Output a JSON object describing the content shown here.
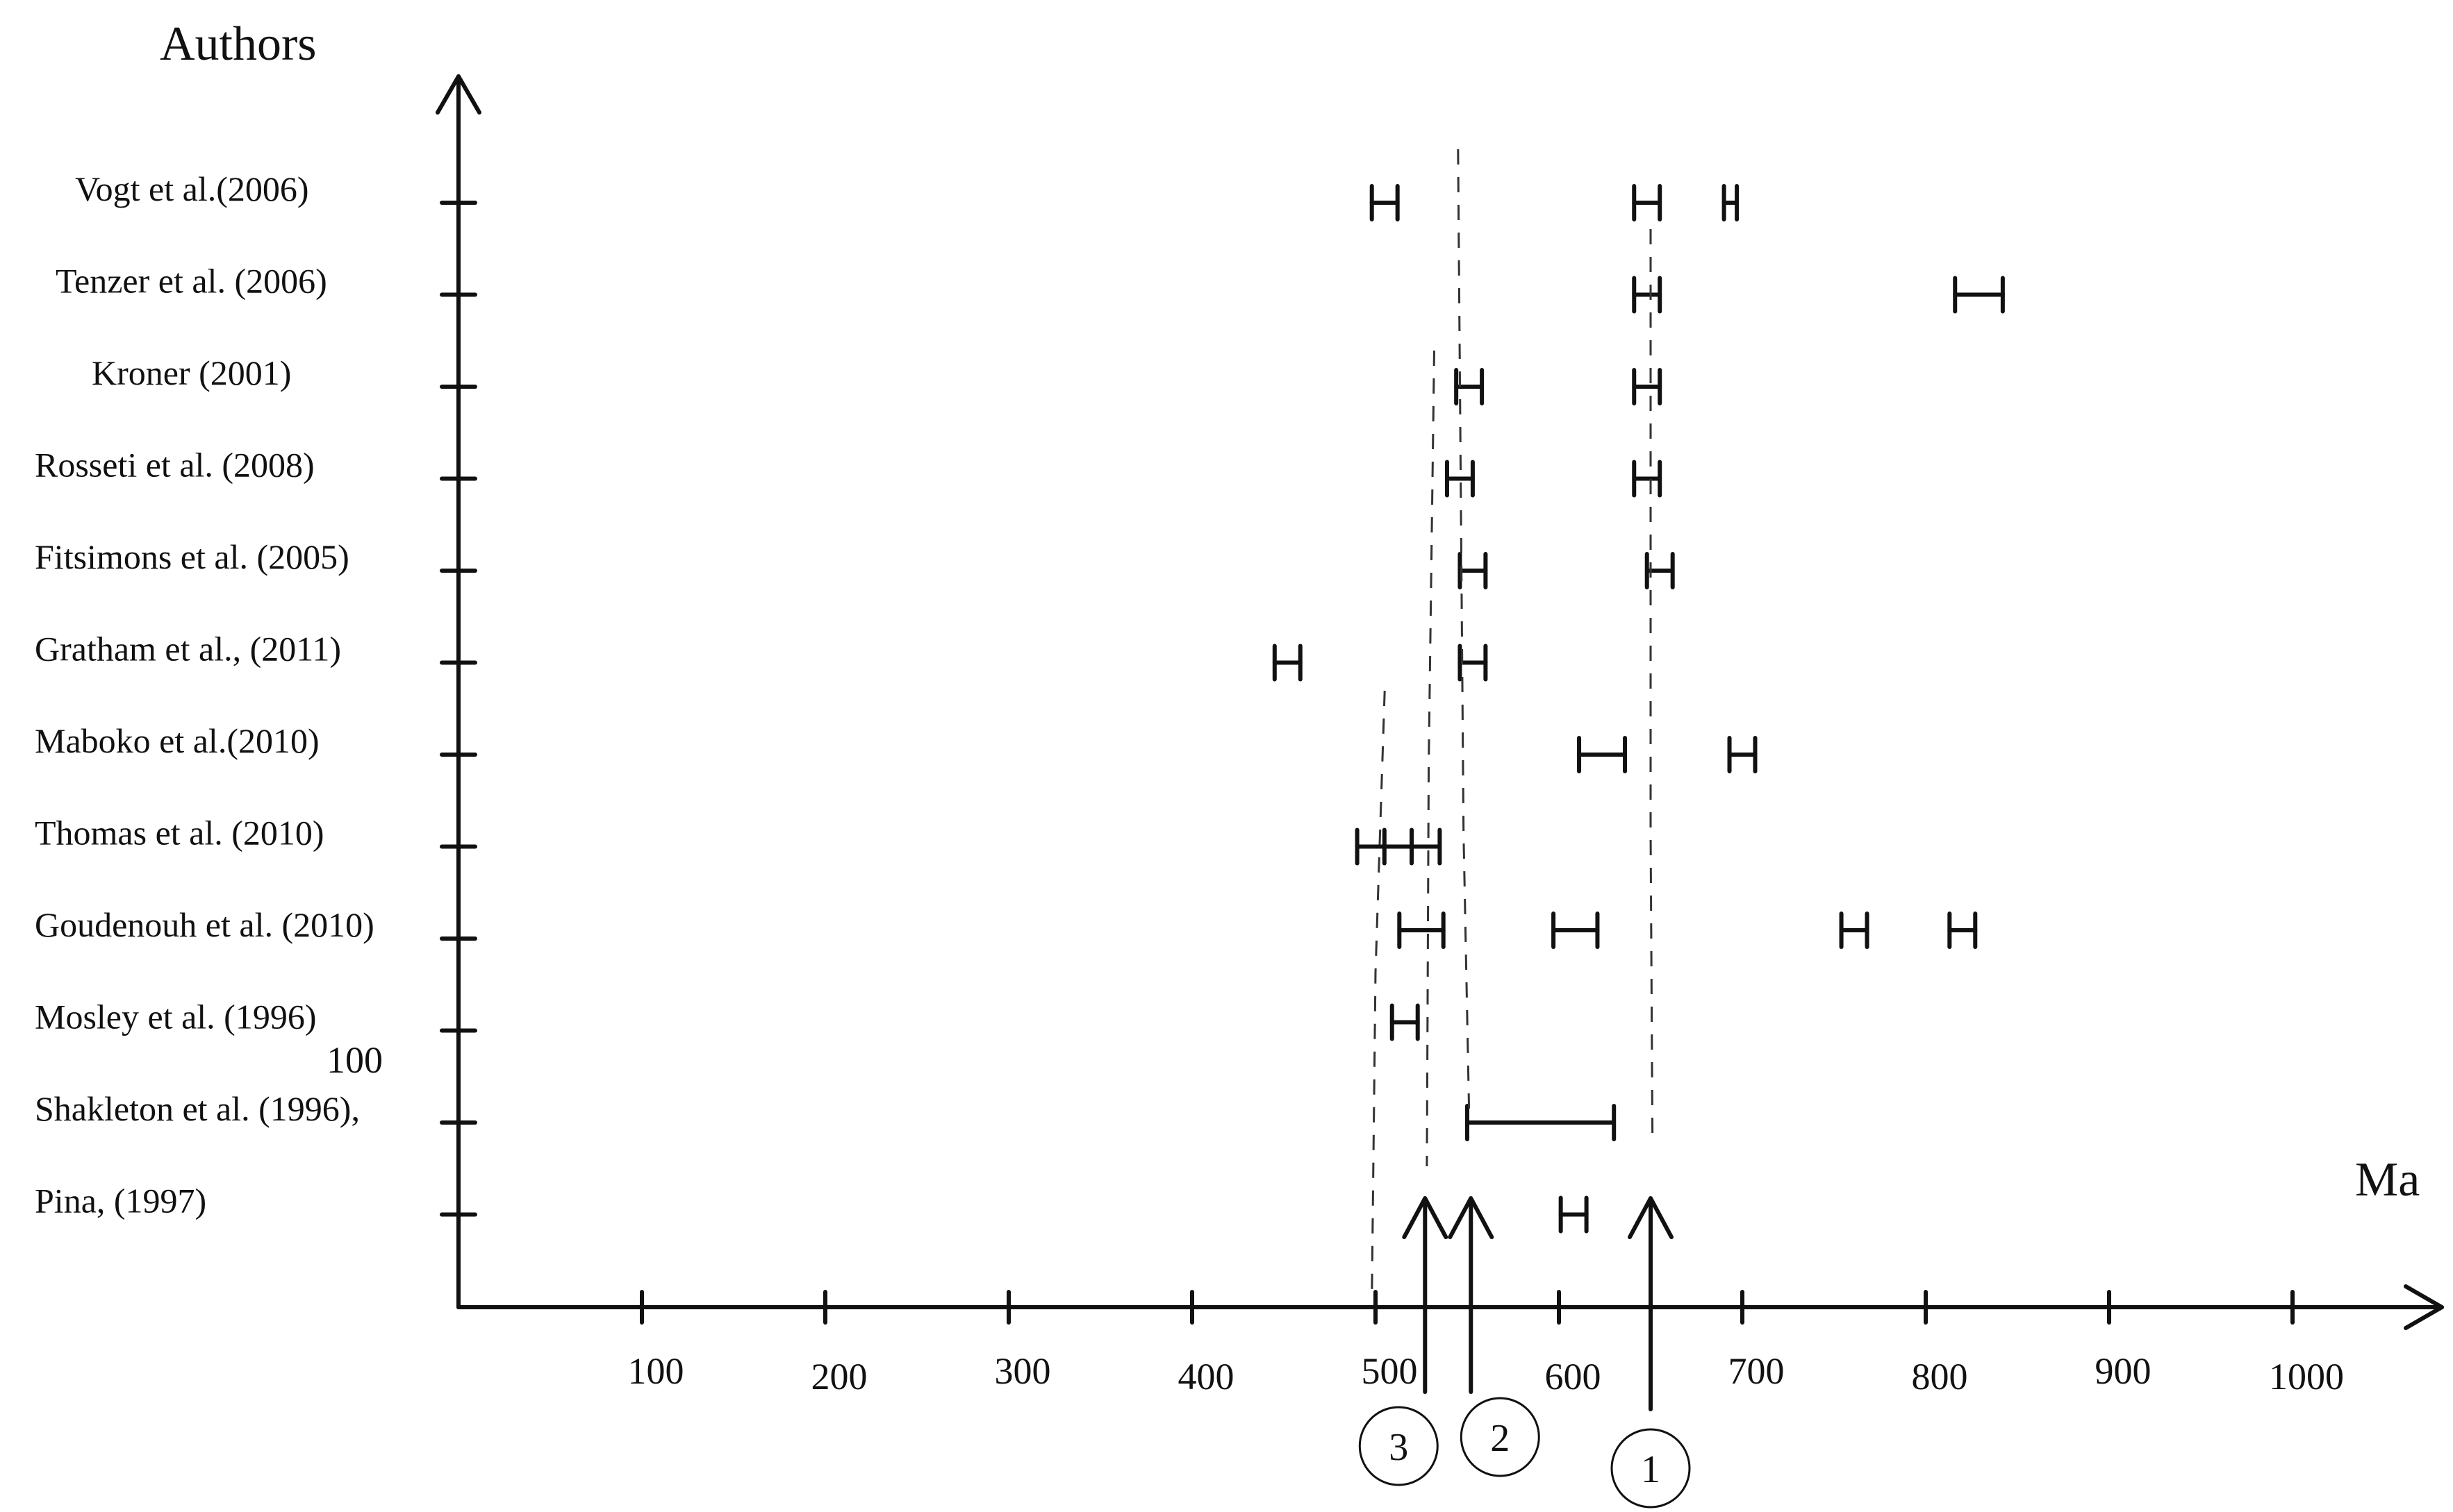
{
  "chart_data": {
    "type": "scatter",
    "title": "",
    "ylabel": "Authors",
    "xlabel": "Ma",
    "xlim": [
      0,
      1080
    ],
    "xticks": [
      100,
      200,
      300,
      400,
      500,
      600,
      700,
      800,
      900,
      1000
    ],
    "grid": false,
    "authors": [
      "Vogt et al.(2006)",
      "Tenzer et al. (2006)",
      "Kroner  (2001)",
      "Rosseti et al. (2008)",
      "Fitsimons et al. (2005)",
      "Gratham et al., (2011)",
      "Maboko et  al.(2010)",
      "Thomas et al. (2010)",
      "Goudenouh et al. (2010)",
      "Mosley et al. (1996)",
      "Shakleton et al. (1996),",
      "Pina, (1997)"
    ],
    "stray_label": "100",
    "ranges": [
      {
        "author": "Vogt et al.(2006)",
        "intervals": [
          [
            498,
            512
          ],
          [
            641,
            655
          ],
          [
            690,
            697
          ]
        ]
      },
      {
        "author": "Tenzer et al. (2006)",
        "intervals": [
          [
            641,
            655
          ],
          [
            816,
            842
          ]
        ]
      },
      {
        "author": "Kroner  (2001)",
        "intervals": [
          [
            544,
            558
          ],
          [
            641,
            655
          ]
        ]
      },
      {
        "author": "Rosseti et al. (2008)",
        "intervals": [
          [
            539,
            553
          ],
          [
            641,
            655
          ]
        ]
      },
      {
        "author": "Fitsimons et al. (2005)",
        "intervals": [
          [
            546,
            560
          ],
          [
            648,
            662
          ]
        ]
      },
      {
        "author": "Gratham et al., (2011)",
        "intervals": [
          [
            445,
            459
          ],
          [
            546,
            560
          ]
        ]
      },
      {
        "author": "Maboko et  al.(2010)",
        "intervals": [
          [
            611,
            636
          ],
          [
            693,
            707
          ]
        ]
      },
      {
        "author": "Thomas et al. (2010)",
        "intervals": [
          [
            490,
            535
          ]
        ]
      },
      {
        "author": "Goudenouh et al. (2010)",
        "intervals": [
          [
            513,
            537
          ],
          [
            597,
            621
          ],
          [
            754,
            768
          ],
          [
            813,
            827
          ]
        ]
      },
      {
        "author": "Mosley et al. (1996)",
        "intervals": [
          [
            509,
            523
          ]
        ]
      },
      {
        "author": "Shakleton et al. (1996),",
        "intervals": [
          [
            550,
            630
          ]
        ]
      },
      {
        "author": "Pina, (1997)",
        "intervals": [
          [
            601,
            615
          ]
        ]
      }
    ],
    "events": [
      {
        "label": "1",
        "x": 650
      },
      {
        "label": "2",
        "x": 552
      },
      {
        "label": "3",
        "x": 527
      }
    ]
  }
}
